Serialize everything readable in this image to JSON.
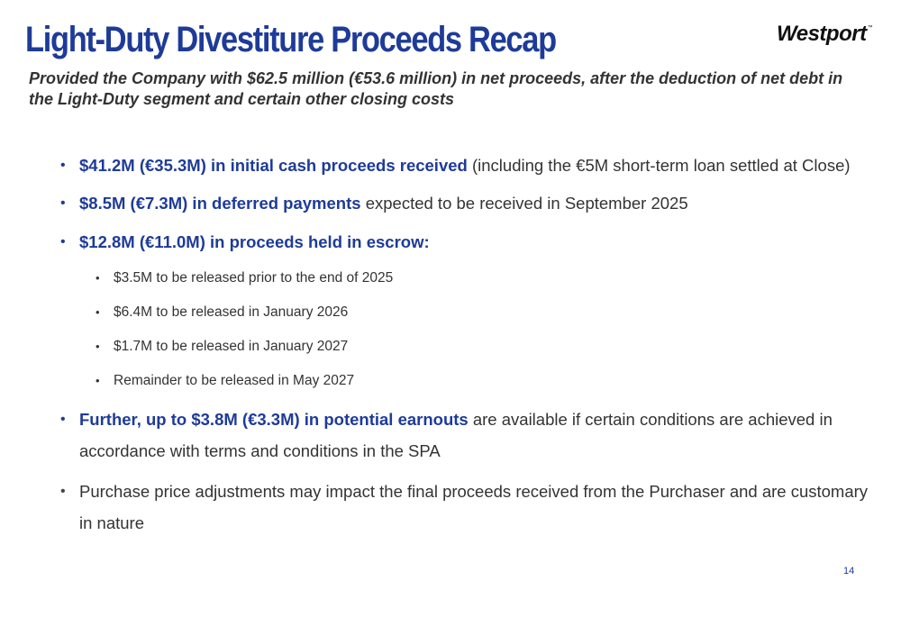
{
  "slide": {
    "title": "Light-Duty Divestiture Proceeds Recap",
    "logo_text": "Westport",
    "logo_mark": "™",
    "subtitle": "Provided the Company with $62.5 million (€53.6 million) in net proceeds, after the deduction of net debt in the Light-Duty segment and certain other closing costs",
    "bullets": [
      {
        "bold": "$41.2M (€35.3M) in initial cash proceeds received",
        "text": " (including the €5M short-term loan settled at Close)"
      },
      {
        "bold": "$8.5M (€7.3M) in deferred payments",
        "text": " expected to be received in September 2025"
      },
      {
        "bold": "$12.8M (€11.0M) in proceeds held in escrow:",
        "text": ""
      },
      {
        "bold": "Further, up to $3.8M (€3.3M) in potential earnouts",
        "text": " are available if certain conditions are achieved in accordance with terms and conditions in the SPA"
      },
      {
        "bold": "",
        "text": "Purchase price adjustments may impact the final proceeds received from the Purchaser and are customary in nature"
      }
    ],
    "escrow_items": [
      "$3.5M to be released prior to the end of 2025",
      "$6.4M to be released in January 2026",
      "$1.7M to be released in January 2027",
      "Remainder to be released in May 2027"
    ],
    "bullet_char": "•",
    "page_number": "14"
  },
  "colors": {
    "title_blue": "#1e3b98",
    "body_text": "#333333"
  }
}
